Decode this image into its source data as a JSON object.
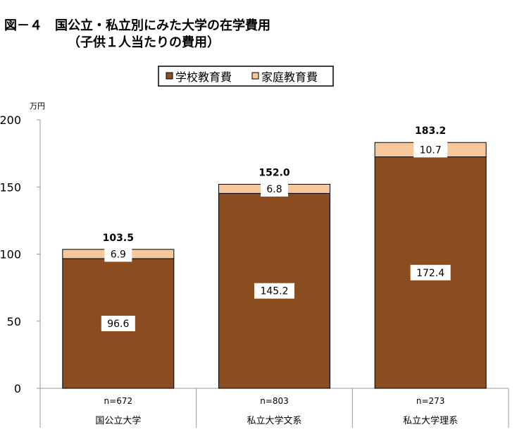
{
  "chart_data": {
    "type": "bar",
    "stacked": true,
    "title": "図－４　国公立・私立別にみた大学の在学費用",
    "subtitle": "（子供１人当たりの費用）",
    "ylabel": "万円",
    "ylim": [
      0,
      200
    ],
    "yticks": [
      0,
      50,
      100,
      150,
      200
    ],
    "grid": false,
    "legend_placement": "top-center",
    "categories": [
      "国公立大学",
      "私立大学文系",
      "私立大学理系"
    ],
    "sample_sizes": [
      "n=672",
      "n=803",
      "n=273"
    ],
    "series": [
      {
        "name": "学校教育費",
        "color": "#8B4C1F",
        "values": [
          96.6,
          145.2,
          172.4
        ],
        "labels": [
          "96.6",
          "145.2",
          "172.4"
        ]
      },
      {
        "name": "家庭教育費",
        "color": "#F6C79A",
        "values": [
          6.9,
          6.8,
          10.7
        ],
        "labels": [
          "6.9",
          "6.8",
          "10.7"
        ]
      }
    ],
    "totals": [
      "103.5",
      "152.0",
      "183.2"
    ]
  }
}
